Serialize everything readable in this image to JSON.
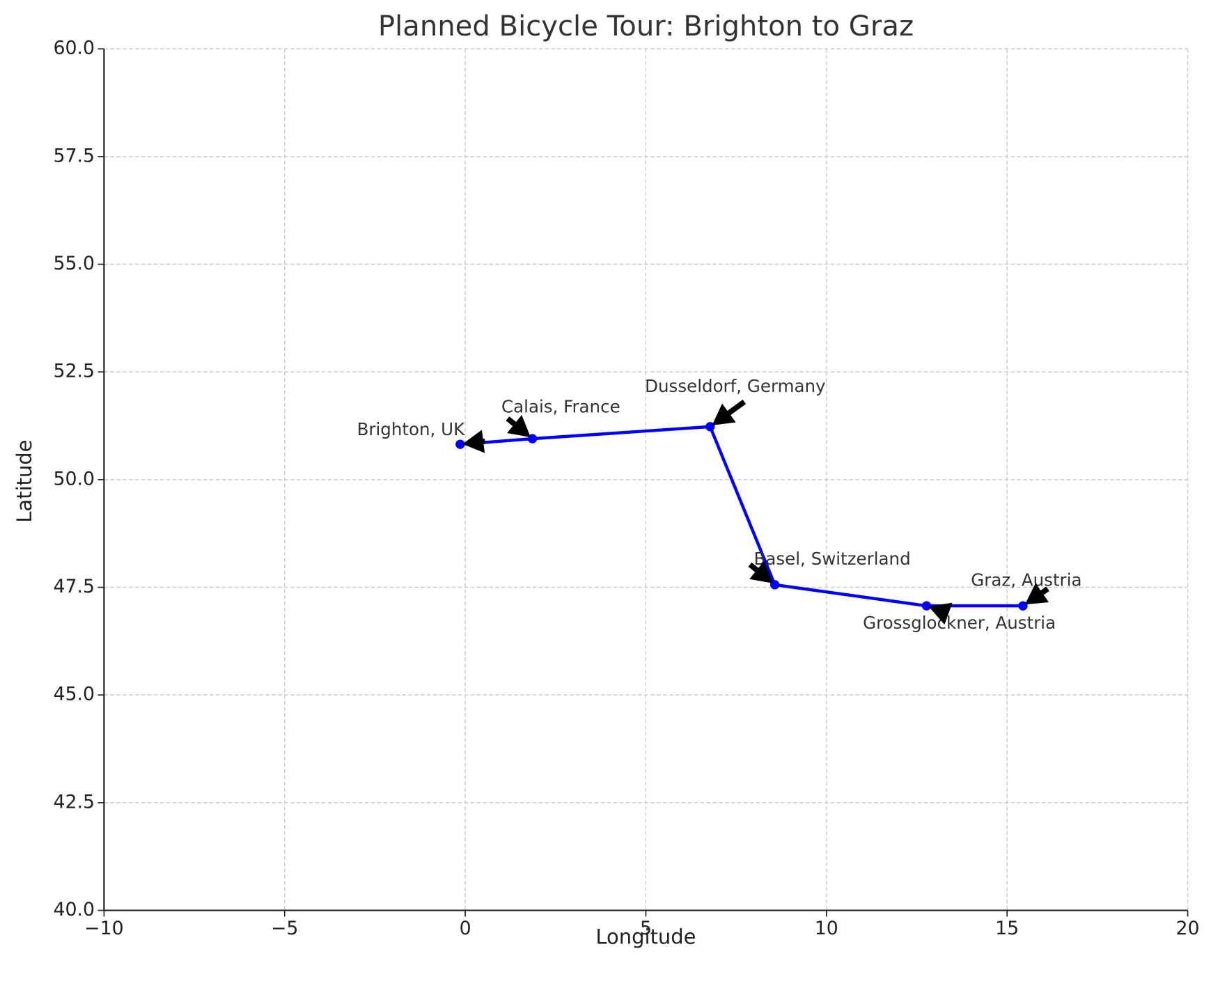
{
  "chart_data": {
    "type": "line",
    "title": "Planned Bicycle Tour: Brighton to Graz",
    "xlabel": "Longitude",
    "ylabel": "Latitude",
    "x": [
      -0.14,
      1.86,
      6.78,
      8.57,
      12.77,
      15.44
    ],
    "series": [
      {
        "color": "#0000ff",
        "values": [
          50.82,
          50.95,
          51.23,
          47.56,
          47.07,
          47.07
        ]
      }
    ],
    "annotations": [
      "Brighton, UK",
      "Calais, France",
      "Dusseldorf, Germany",
      "Basel, Switzerland",
      "Grossglockner, Austria",
      "Graz, Austria"
    ],
    "xlim": [
      -10,
      20
    ],
    "xticks": [
      {
        "value": -10,
        "label": "−10"
      },
      {
        "value": -5,
        "label": "−5"
      },
      0,
      5,
      10,
      15,
      20
    ],
    "ylim": [
      40,
      60
    ],
    "yticks": [
      {
        "value": 40,
        "label": "40.0"
      },
      {
        "value": 42.5,
        "label": "42.5"
      },
      {
        "value": 45,
        "label": "45.0"
      },
      {
        "value": 47.5,
        "label": "47.5"
      },
      {
        "value": 50,
        "label": "50.0"
      },
      {
        "value": 52.5,
        "label": "52.5"
      },
      {
        "value": 55,
        "label": "55.0"
      },
      {
        "value": 57.5,
        "label": "57.5"
      },
      {
        "value": 60,
        "label": "60.0"
      }
    ],
    "grid": true
  }
}
